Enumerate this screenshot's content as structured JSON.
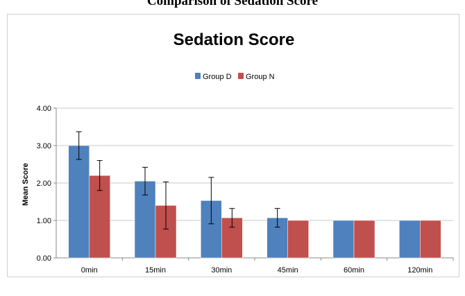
{
  "page": {
    "caption": "Comparison of Sedation Score"
  },
  "chart_data": {
    "type": "bar",
    "title": "Sedation Score",
    "xlabel": "",
    "ylabel": "Mean Score",
    "ylim": [
      0,
      4
    ],
    "yticks": [
      "0.00",
      "1.00",
      "2.00",
      "3.00",
      "4.00"
    ],
    "categories": [
      "0min",
      "15min",
      "30min",
      "45min",
      "60min",
      "120min"
    ],
    "legend_position": "top-center",
    "grid": true,
    "series": [
      {
        "name": "Group D",
        "color": "#4f81bd",
        "values": [
          3.0,
          2.05,
          1.53,
          1.07,
          1.0,
          1.0
        ],
        "error": [
          0.37,
          0.37,
          0.62,
          0.25,
          0.0,
          0.0
        ]
      },
      {
        "name": "Group N",
        "color": "#c0504d",
        "values": [
          2.2,
          1.4,
          1.07,
          1.0,
          1.0,
          1.0
        ],
        "error": [
          0.4,
          0.63,
          0.25,
          0.0,
          0.0,
          0.0
        ]
      }
    ]
  }
}
